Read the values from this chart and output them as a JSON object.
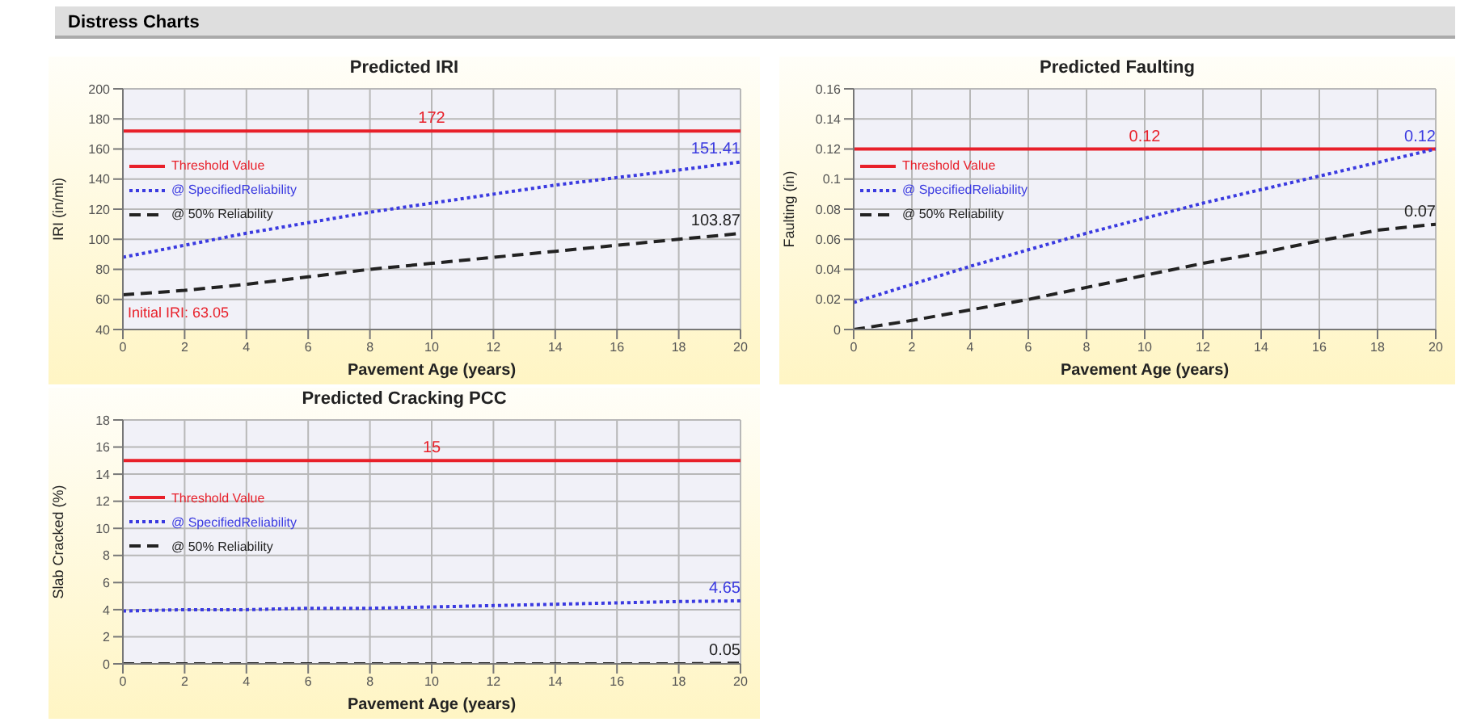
{
  "chart_data": [
    {
      "type": "line",
      "title": "Predicted IRI",
      "xlabel": "Pavement Age (years)",
      "ylabel": "IRI (in/mi)",
      "annotations": [
        "Distress Charts",
        {
          "text": "Initial IRI: 63.05",
          "x": 0,
          "y": 63.05
        }
      ],
      "x": [
        0,
        2,
        4,
        6,
        8,
        10,
        12,
        14,
        16,
        18,
        20
      ],
      "xlim": [
        0,
        20
      ],
      "xticks": [
        0,
        2,
        4,
        6,
        8,
        10,
        12,
        14,
        16,
        18,
        20
      ],
      "ylim": [
        40,
        200
      ],
      "yticks": [
        40,
        60,
        80,
        100,
        120,
        140,
        160,
        180,
        200
      ],
      "grid": true,
      "legend": "left",
      "marker": "none",
      "series": [
        {
          "name": "Threshold Value",
          "color": "#e8202a",
          "line_style": "solid",
          "values": [
            172,
            172,
            172,
            172,
            172,
            172,
            172,
            172,
            172,
            172,
            172
          ],
          "value_labels": [
            null,
            null,
            null,
            null,
            null,
            "172",
            null,
            null,
            null,
            null,
            null
          ]
        },
        {
          "name": "@ SpecifiedReliability",
          "color": "#3a3ae0",
          "line_style": "dotted",
          "values": [
            88,
            96,
            104,
            111,
            118,
            124,
            130,
            136,
            141,
            146,
            151.41
          ],
          "value_labels": [
            null,
            null,
            null,
            null,
            null,
            null,
            null,
            null,
            null,
            null,
            "151.41"
          ]
        },
        {
          "name": "@ 50% Reliability",
          "color": "#222222",
          "line_style": "dashed",
          "values": [
            63.05,
            66,
            70,
            75,
            80,
            84,
            88,
            92,
            96,
            100,
            103.87
          ],
          "value_labels": [
            null,
            null,
            null,
            null,
            null,
            null,
            null,
            null,
            null,
            null,
            "103.87"
          ]
        }
      ]
    },
    {
      "type": "line",
      "title": "Predicted Faulting",
      "xlabel": "Pavement Age (years)",
      "ylabel": "Faulting (in)",
      "x": [
        0,
        2,
        4,
        6,
        8,
        10,
        12,
        14,
        16,
        18,
        20
      ],
      "xlim": [
        0,
        20
      ],
      "xticks": [
        0,
        2,
        4,
        6,
        8,
        10,
        12,
        14,
        16,
        18,
        20
      ],
      "ylim": [
        0,
        0.16
      ],
      "yticks": [
        0,
        0.02,
        0.04,
        0.06,
        0.08,
        0.1,
        0.12,
        0.14,
        0.16
      ],
      "grid": true,
      "legend": "left",
      "marker": "none",
      "series": [
        {
          "name": "Threshold Value",
          "color": "#e8202a",
          "line_style": "solid",
          "values": [
            0.12,
            0.12,
            0.12,
            0.12,
            0.12,
            0.12,
            0.12,
            0.12,
            0.12,
            0.12,
            0.12
          ],
          "value_labels": [
            null,
            null,
            null,
            null,
            null,
            "0.12",
            null,
            null,
            null,
            null,
            null
          ]
        },
        {
          "name": "@ SpecifiedReliability",
          "color": "#3a3ae0",
          "line_style": "dotted",
          "values": [
            0.018,
            0.03,
            0.042,
            0.053,
            0.064,
            0.074,
            0.084,
            0.093,
            0.102,
            0.111,
            0.12
          ],
          "value_labels": [
            null,
            null,
            null,
            null,
            null,
            null,
            null,
            null,
            null,
            null,
            "0.12"
          ]
        },
        {
          "name": "@ 50% Reliability",
          "color": "#222222",
          "line_style": "dashed",
          "values": [
            0,
            0.006,
            0.013,
            0.02,
            0.028,
            0.036,
            0.044,
            0.051,
            0.059,
            0.066,
            0.07
          ],
          "value_labels": [
            null,
            null,
            null,
            null,
            null,
            null,
            null,
            null,
            null,
            null,
            "0.07"
          ]
        }
      ]
    },
    {
      "type": "line",
      "title": "Predicted Cracking PCC",
      "xlabel": "Pavement Age (years)",
      "ylabel": "Slab Cracked (%)",
      "x": [
        0,
        2,
        4,
        6,
        8,
        10,
        12,
        14,
        16,
        18,
        20
      ],
      "xlim": [
        0,
        20
      ],
      "xticks": [
        0,
        2,
        4,
        6,
        8,
        10,
        12,
        14,
        16,
        18,
        20
      ],
      "ylim": [
        0,
        18
      ],
      "yticks": [
        0,
        2,
        4,
        6,
        8,
        10,
        12,
        14,
        16,
        18
      ],
      "grid": true,
      "legend": "left",
      "marker": "none",
      "series": [
        {
          "name": "Threshold Value",
          "color": "#e8202a",
          "line_style": "solid",
          "values": [
            15,
            15,
            15,
            15,
            15,
            15,
            15,
            15,
            15,
            15,
            15
          ],
          "value_labels": [
            null,
            null,
            null,
            null,
            null,
            "15",
            null,
            null,
            null,
            null,
            null
          ]
        },
        {
          "name": "@ SpecifiedReliability",
          "color": "#3a3ae0",
          "line_style": "dotted",
          "values": [
            3.9,
            4,
            4,
            4.1,
            4.1,
            4.2,
            4.3,
            4.4,
            4.5,
            4.6,
            4.65
          ],
          "value_labels": [
            null,
            null,
            null,
            null,
            null,
            null,
            null,
            null,
            null,
            null,
            "4.65"
          ]
        },
        {
          "name": "@ 50% Reliability",
          "color": "#222222",
          "line_style": "dashed",
          "values": [
            0,
            0,
            0,
            0,
            0,
            0,
            0,
            0,
            0,
            0,
            0.05
          ],
          "value_labels": [
            null,
            null,
            null,
            null,
            null,
            null,
            null,
            null,
            null,
            null,
            "0.05"
          ]
        }
      ]
    }
  ]
}
